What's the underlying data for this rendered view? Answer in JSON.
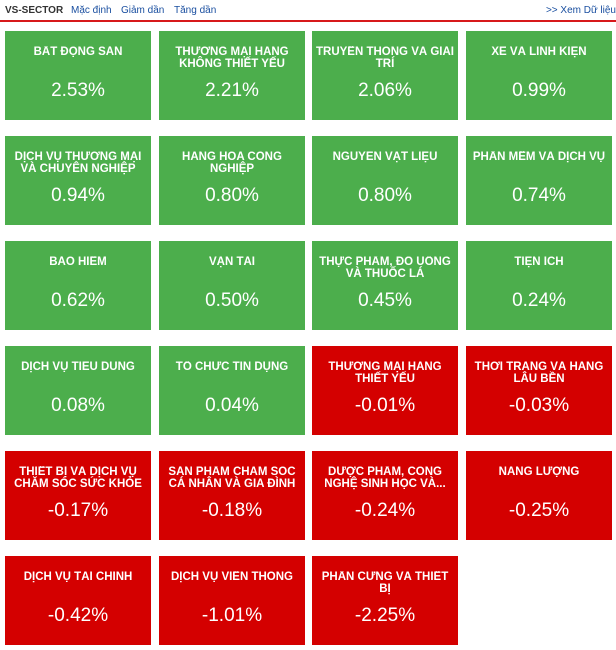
{
  "header": {
    "brand": "VS-SECTOR",
    "tabs": [
      "Mặc định",
      "Giảm dần",
      "Tăng dần"
    ],
    "more_link": ">> Xem Dữ liệu"
  },
  "colors": {
    "up": "#4cae4c",
    "down": "#d40000",
    "accent": "#d7191b"
  },
  "sectors": [
    {
      "name": "BẤT ĐỘNG SẢN",
      "change": "2.53%",
      "trend": "up"
    },
    {
      "name": "THƯƠNG MẠI HÀNG KHÔNG THIẾT YẾU",
      "change": "2.21%",
      "trend": "up"
    },
    {
      "name": "TRUYỀN THÔNG VÀ GIẢI TRÍ",
      "change": "2.06%",
      "trend": "up"
    },
    {
      "name": "XE VÀ LINH KIỆN",
      "change": "0.99%",
      "trend": "up"
    },
    {
      "name": "DỊCH VỤ THƯƠNG MẠI VÀ CHUYÊN NGHIỆP",
      "change": "0.94%",
      "trend": "up"
    },
    {
      "name": "HÀNG HÓA CÔNG NGHIỆP",
      "change": "0.80%",
      "trend": "up"
    },
    {
      "name": "NGUYÊN VẬT LIỆU",
      "change": "0.80%",
      "trend": "up"
    },
    {
      "name": "PHẦN MỀM VÀ DỊCH VỤ",
      "change": "0.74%",
      "trend": "up"
    },
    {
      "name": "BẢO HIỂM",
      "change": "0.62%",
      "trend": "up"
    },
    {
      "name": "VẬN TẢI",
      "change": "0.50%",
      "trend": "up"
    },
    {
      "name": "THỰC PHẨM, ĐỒ UỐNG VÀ THUỐC LÁ",
      "change": "0.45%",
      "trend": "up"
    },
    {
      "name": "TIỆN ÍCH",
      "change": "0.24%",
      "trend": "up"
    },
    {
      "name": "DỊCH VỤ TIÊU DÙNG",
      "change": "0.08%",
      "trend": "up"
    },
    {
      "name": "TỔ CHỨC TÍN DỤNG",
      "change": "0.04%",
      "trend": "up"
    },
    {
      "name": "THƯƠNG MẠI HÀNG THIẾT YẾU",
      "change": "-0.01%",
      "trend": "down"
    },
    {
      "name": "THỜI TRANG VÀ HÀNG LÂU BỀN",
      "change": "-0.03%",
      "trend": "down"
    },
    {
      "name": "THIẾT BỊ VÀ DỊCH VỤ CHĂM SÓC SỨC KHỎE",
      "change": "-0.17%",
      "trend": "down"
    },
    {
      "name": "SẢN PHẨM CHĂM SÓC CÁ NHÂN VÀ GIA ĐÌNH",
      "change": "-0.18%",
      "trend": "down"
    },
    {
      "name": "DƯỢC PHẨM, CÔNG NGHỆ SINH HỌC VÀ...",
      "change": "-0.24%",
      "trend": "down"
    },
    {
      "name": "NĂNG LƯỢNG",
      "change": "-0.25%",
      "trend": "down"
    },
    {
      "name": "DỊCH VỤ TÀI CHÍNH",
      "change": "-0.42%",
      "trend": "down"
    },
    {
      "name": "DỊCH VỤ VIỄN THÔNG",
      "change": "-1.01%",
      "trend": "down"
    },
    {
      "name": "PHẦN CỨNG VÀ THIẾT BỊ",
      "change": "-2.25%",
      "trend": "down"
    }
  ]
}
